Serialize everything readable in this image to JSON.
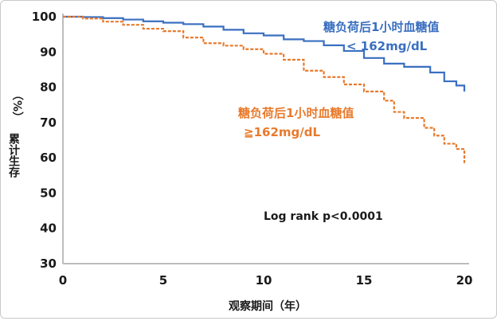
{
  "chart_data": {
    "type": "line",
    "title": "",
    "xlabel": "观察期间（年）",
    "ylabel_parts": [
      "（%）",
      "累计生存"
    ],
    "xlim": [
      0,
      20
    ],
    "ylim": [
      30,
      100
    ],
    "x_ticks": [
      0,
      5,
      10,
      15,
      20
    ],
    "y_ticks": [
      30,
      40,
      50,
      60,
      70,
      80,
      90,
      100
    ],
    "grid": false,
    "legend": "none",
    "annotation": "Log rank p<0.0001",
    "series": [
      {
        "name_lines": [
          "糖负荷后1小时血糖值",
          "< 162mg/dL"
        ],
        "color": "#3a6fc0",
        "style": "solid",
        "points": [
          [
            0,
            100
          ],
          [
            1,
            99.9
          ],
          [
            2,
            99.6
          ],
          [
            3,
            99.2
          ],
          [
            4,
            98.7
          ],
          [
            5,
            98.3
          ],
          [
            6,
            97.9
          ],
          [
            7,
            97.2
          ],
          [
            8,
            96.3
          ],
          [
            9,
            95.3
          ],
          [
            10,
            94.7
          ],
          [
            11,
            93.6
          ],
          [
            12,
            93.1
          ],
          [
            13,
            91.9
          ],
          [
            14,
            90.3
          ],
          [
            15,
            88.3
          ],
          [
            16,
            86.7
          ],
          [
            17,
            85.8
          ],
          [
            17.8,
            85.8
          ],
          [
            18.3,
            84.2
          ],
          [
            19,
            81.7
          ],
          [
            19.6,
            80.5
          ],
          [
            20,
            78.8
          ]
        ]
      },
      {
        "name_lines": [
          "糖负荷后1小时血糖值",
          "≧162mg/dL"
        ],
        "color": "#e87a2c",
        "style": "dashed",
        "points": [
          [
            0,
            100
          ],
          [
            1,
            99.5
          ],
          [
            2,
            98.6
          ],
          [
            3,
            97.7
          ],
          [
            4,
            96.6
          ],
          [
            5,
            95.9
          ],
          [
            6,
            94.1
          ],
          [
            7,
            92.5
          ],
          [
            8,
            91.8
          ],
          [
            9,
            90.8
          ],
          [
            10,
            89.5
          ],
          [
            11,
            87.8
          ],
          [
            12,
            84.7
          ],
          [
            13,
            82.9
          ],
          [
            14,
            80.8
          ],
          [
            15,
            78.8
          ],
          [
            16,
            76.2
          ],
          [
            16.5,
            73.0
          ],
          [
            17,
            71.3
          ],
          [
            18,
            68.5
          ],
          [
            18.5,
            66.3
          ],
          [
            19,
            64.0
          ],
          [
            19.6,
            62.5
          ],
          [
            20,
            58.5
          ]
        ]
      }
    ]
  }
}
